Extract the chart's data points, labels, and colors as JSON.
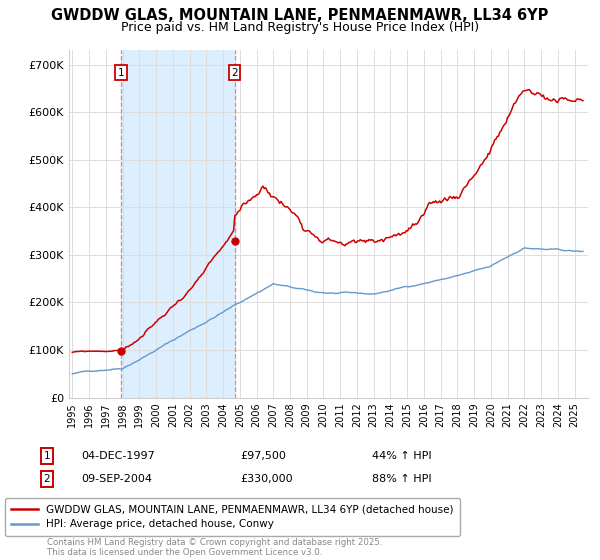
{
  "title": "GWDDW GLAS, MOUNTAIN LANE, PENMAENMAWR, LL34 6YP",
  "subtitle": "Price paid vs. HM Land Registry's House Price Index (HPI)",
  "legend_label_red": "GWDDW GLAS, MOUNTAIN LANE, PENMAENMAWR, LL34 6YP (detached house)",
  "legend_label_blue": "HPI: Average price, detached house, Conwy",
  "point1_date": "04-DEC-1997",
  "point1_price": "£97,500",
  "point1_hpi": "44% ↑ HPI",
  "point2_date": "09-SEP-2004",
  "point2_price": "£330,000",
  "point2_hpi": "88% ↑ HPI",
  "footer": "Contains HM Land Registry data © Crown copyright and database right 2025.\nThis data is licensed under the Open Government Licence v3.0.",
  "vline1_x": 1997.92,
  "vline2_x": 2004.69,
  "point1_y": 97500,
  "point2_y": 330000,
  "ylim": [
    0,
    730000
  ],
  "xlim_start": 1994.8,
  "xlim_end": 2025.8,
  "red_color": "#cc0000",
  "blue_color": "#6699cc",
  "vline_color": "#dd8888",
  "shade_color": "#ddeeff",
  "background_color": "#ffffff",
  "grid_color": "#dddddd",
  "title_fontsize": 10.5,
  "subtitle_fontsize": 9
}
